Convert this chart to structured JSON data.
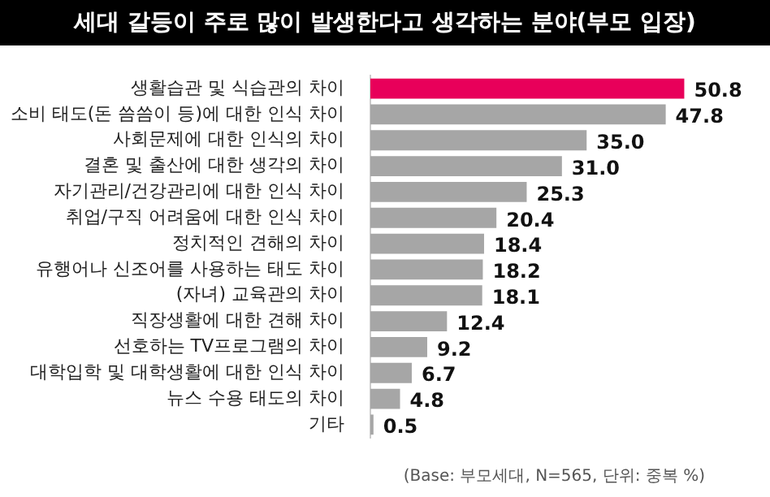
{
  "chart_data": {
    "type": "bar",
    "orientation": "horizontal",
    "title": "세대 갈등이 주로 많이 발생한다고 생각하는 분야(부모 입장)",
    "categories": [
      "생활습관 및 식습관의 차이",
      "소비 태도(돈 씀씀이 등)에 대한 인식 차이",
      "사회문제에 대한 인식의 차이",
      "결혼 및 출산에 대한 생각의 차이",
      "자기관리/건강관리에 대한 인식 차이",
      "취업/구직 어려움에 대한 인식 차이",
      "정치적인 견해의 차이",
      "유행어나 신조어를 사용하는 태도 차이",
      "(자녀) 교육관의 차이",
      "직장생활에 대한 견해 차이",
      "선호하는 TV프로그램의 차이",
      "대학입학 및 대학생활에 대한 인식 차이",
      "뉴스 수용 태도의 차이",
      "기타"
    ],
    "values": [
      50.8,
      47.8,
      35.0,
      31.0,
      25.3,
      20.4,
      18.4,
      18.2,
      18.1,
      12.4,
      9.2,
      6.7,
      4.8,
      0.5
    ],
    "value_labels": [
      "50.8",
      "47.8",
      "35.0",
      "31.0",
      "25.3",
      "20.4",
      "18.4",
      "18.2",
      "18.1",
      "12.4",
      "9.2",
      "6.7",
      "4.8",
      "0.5"
    ],
    "colors": [
      "#e8005a",
      "#a6a6a6",
      "#a6a6a6",
      "#a6a6a6",
      "#a6a6a6",
      "#a6a6a6",
      "#a6a6a6",
      "#a6a6a6",
      "#a6a6a6",
      "#a6a6a6",
      "#a6a6a6",
      "#a6a6a6",
      "#a6a6a6",
      "#a6a6a6"
    ],
    "legend": false,
    "annotations": [
      "(Base: 부모세대, N=565, 단위: 중복 %)"
    ]
  }
}
